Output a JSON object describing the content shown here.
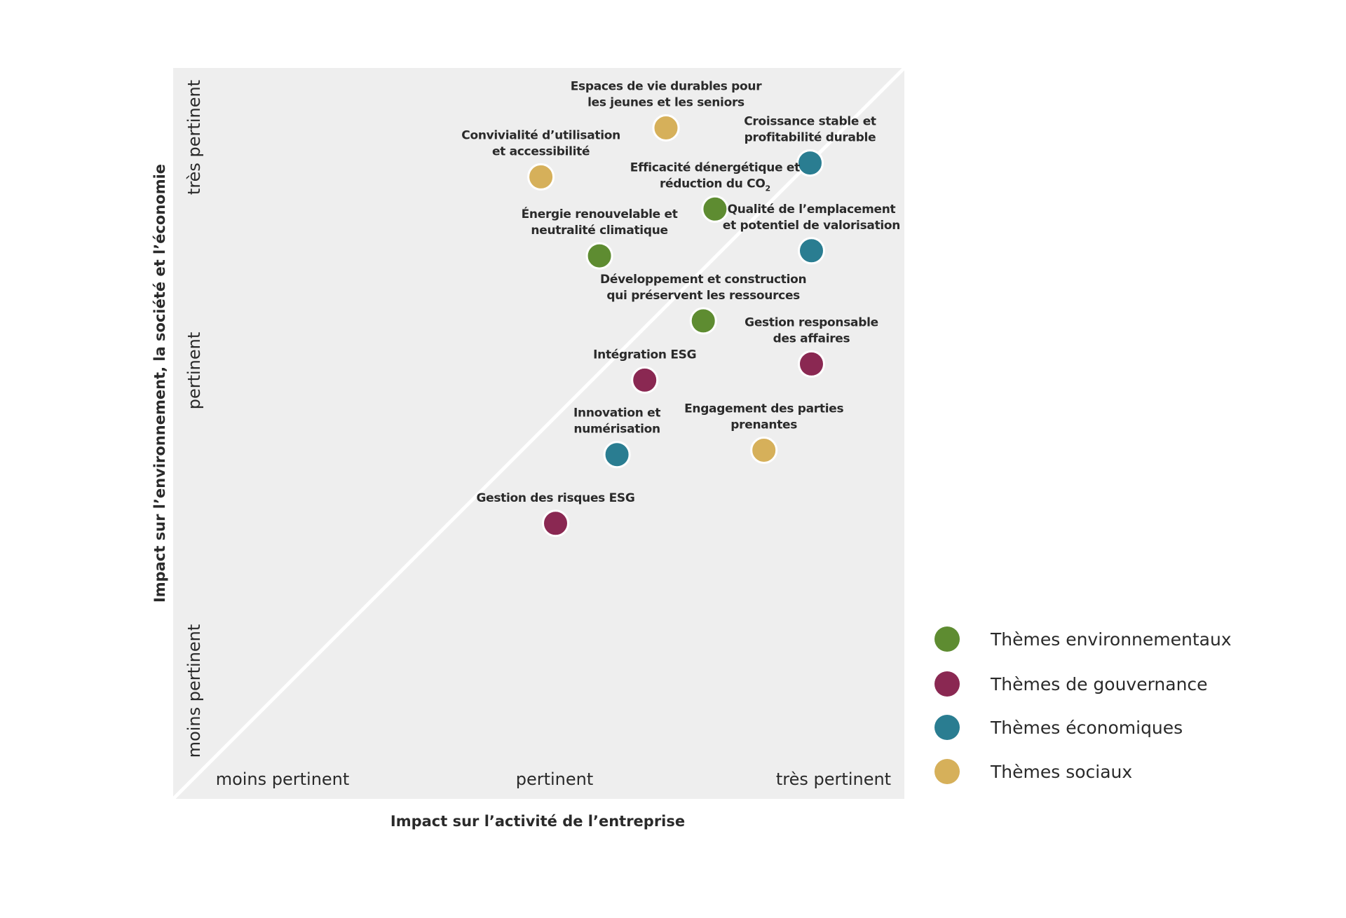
{
  "chart_data": {
    "type": "scatter",
    "title": "",
    "xlabel": "Impact sur l’activité de l’entreprise",
    "ylabel": "Impact sur l’environnement, la société et l’économie",
    "xlim": [
      0,
      10
    ],
    "ylim": [
      0,
      10
    ],
    "grid": false,
    "background": "#eeeeee",
    "diagonal_reference_line": true,
    "x_tick_labels": [
      "moins pertinent",
      "pertinent",
      "très pertinent"
    ],
    "y_tick_labels": [
      "moins pertinent",
      "pertinent",
      "très pertinent"
    ],
    "legend_position": "bottom-right",
    "categories": [
      {
        "key": "env",
        "name": "Thèmes environnementaux",
        "color": "#5e8c31"
      },
      {
        "key": "gov",
        "name": "Thèmes de gouvernance",
        "color": "#8a2852"
      },
      {
        "key": "eco",
        "name": "Thèmes économiques",
        "color": "#2a7d91"
      },
      {
        "key": "soc",
        "name": "Thèmes sociaux",
        "color": "#d6b05a"
      }
    ],
    "points": [
      {
        "label_lines": [
          "Espaces de vie durables pour",
          "les jeunes et les seniors"
        ],
        "category": "soc",
        "x": 6.74,
        "y": 9.18,
        "label_pos": "above"
      },
      {
        "label_lines": [
          "Convivialité d’utilisation",
          "et accessibilité"
        ],
        "category": "soc",
        "x": 5.03,
        "y": 8.51,
        "label_pos": "above"
      },
      {
        "label_lines": [
          "Croissance stable et",
          "profitabilité durable"
        ],
        "category": "eco",
        "x": 8.71,
        "y": 8.7,
        "label_pos": "above"
      },
      {
        "label_lines": [
          "Efficacité dénergétique et",
          "réduction du CO"
        ],
        "label_subscript": "2",
        "category": "env",
        "x": 7.41,
        "y": 8.07,
        "label_pos": "above"
      },
      {
        "label_lines": [
          "Énergie renouvelable et",
          "neutralité climatique"
        ],
        "category": "env",
        "x": 5.83,
        "y": 7.43,
        "label_pos": "above"
      },
      {
        "label_lines": [
          "Qualité de l’emplacement",
          "et potentiel de valorisation"
        ],
        "category": "eco",
        "x": 8.73,
        "y": 7.5,
        "label_pos": "above"
      },
      {
        "label_lines": [
          "Développement et construction",
          "qui préservent les ressources"
        ],
        "category": "env",
        "x": 7.25,
        "y": 6.54,
        "label_pos": "above"
      },
      {
        "label_lines": [
          "Gestion responsable",
          "des affaires"
        ],
        "category": "gov",
        "x": 8.73,
        "y": 5.95,
        "label_pos": "above"
      },
      {
        "label_lines": [
          "Intégration ESG"
        ],
        "category": "gov",
        "x": 6.45,
        "y": 5.73,
        "label_pos": "above"
      },
      {
        "label_lines": [
          "Engagement des parties",
          "prenantes"
        ],
        "category": "soc",
        "x": 8.08,
        "y": 4.77,
        "label_pos": "above"
      },
      {
        "label_lines": [
          "Innovation et",
          "numérisation"
        ],
        "category": "eco",
        "x": 6.07,
        "y": 4.71,
        "label_pos": "above"
      },
      {
        "label_lines": [
          "Gestion des risques ESG"
        ],
        "category": "gov",
        "x": 5.23,
        "y": 3.77,
        "label_pos": "above"
      }
    ]
  }
}
